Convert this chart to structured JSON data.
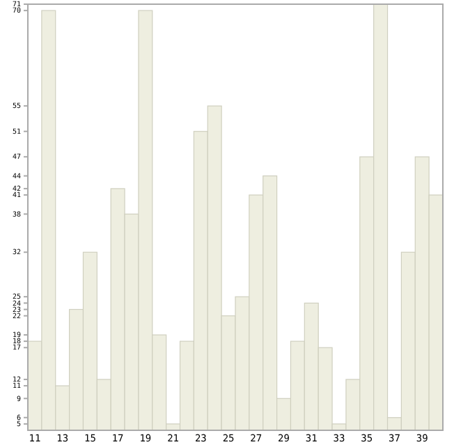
{
  "chart_data": {
    "type": "bar",
    "categories": [
      "11",
      null,
      "13",
      null,
      "15",
      null,
      "17",
      null,
      "19",
      null,
      "21",
      null,
      "23",
      null,
      "25",
      null,
      "27",
      null,
      "29",
      null,
      "31",
      null,
      "33",
      null,
      "35",
      null,
      "37",
      null,
      "39",
      null
    ],
    "values": [
      18,
      70,
      11,
      23,
      32,
      12,
      42,
      38,
      70,
      19,
      5,
      18,
      51,
      55,
      22,
      25,
      41,
      44,
      9,
      18,
      24,
      17,
      5,
      12,
      47,
      71,
      6,
      32,
      47,
      41
    ],
    "color": "#eeeee0",
    "ylim": [
      4,
      71
    ],
    "yticks": [
      5,
      6,
      9,
      11,
      12,
      17,
      18,
      19,
      22,
      23,
      24,
      25,
      32,
      38,
      41,
      42,
      44,
      47,
      51,
      55,
      70,
      71
    ],
    "grid": false
  }
}
